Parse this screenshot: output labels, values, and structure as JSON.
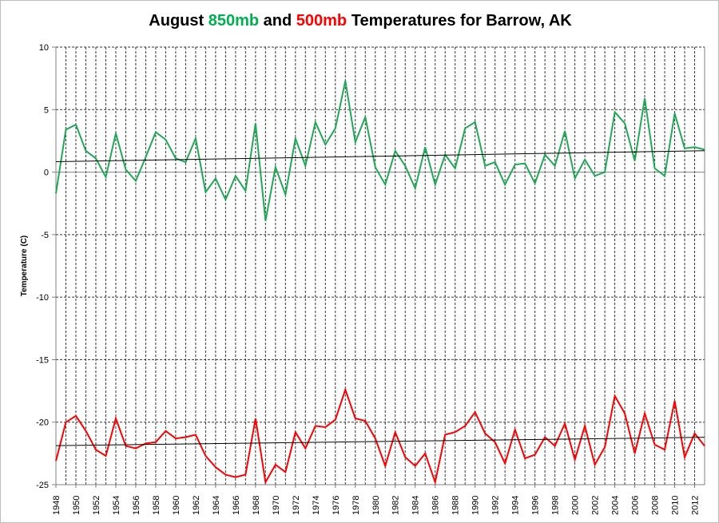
{
  "chart_data": {
    "type": "line",
    "title_parts": [
      {
        "text": "August ",
        "color": "#000000"
      },
      {
        "text": "850mb",
        "color": "#00b050"
      },
      {
        "text": " and ",
        "color": "#000000"
      },
      {
        "text": "500mb",
        "color": "#ff0000"
      },
      {
        "text": " Temperatures for Barrow, AK",
        "color": "#000000"
      }
    ],
    "xlabel": "",
    "ylabel": "Temperature (C)",
    "ylim": [
      -25,
      10
    ],
    "yticks": [
      10,
      5,
      0,
      -5,
      -10,
      -15,
      -20,
      -25
    ],
    "x": [
      1948,
      1949,
      1950,
      1951,
      1952,
      1953,
      1954,
      1955,
      1956,
      1957,
      1958,
      1959,
      1960,
      1961,
      1962,
      1963,
      1964,
      1965,
      1966,
      1967,
      1968,
      1969,
      1970,
      1971,
      1972,
      1973,
      1974,
      1975,
      1976,
      1977,
      1978,
      1979,
      1980,
      1981,
      1982,
      1983,
      1984,
      1985,
      1986,
      1987,
      1988,
      1989,
      1990,
      1991,
      1992,
      1993,
      1994,
      1995,
      1996,
      1997,
      1998,
      1999,
      2000,
      2001,
      2002,
      2003,
      2004,
      2005,
      2006,
      2007,
      2008,
      2009,
      2010,
      2011,
      2012,
      2013
    ],
    "xtick_labels": [
      "1948",
      "1950",
      "1952",
      "1954",
      "1956",
      "1958",
      "1960",
      "1962",
      "1964",
      "1966",
      "1968",
      "1970",
      "1972",
      "1974",
      "1976",
      "1978",
      "1980",
      "1982",
      "1984",
      "1986",
      "1988",
      "1990",
      "1992",
      "1994",
      "1996",
      "1998",
      "2000",
      "2002",
      "2004",
      "2006",
      "2008",
      "2010",
      "2012"
    ],
    "grid": true,
    "series": [
      {
        "name": "850mb",
        "color": "#1fa855",
        "trendline": true,
        "values": [
          -1.7,
          3.4,
          3.8,
          1.7,
          1.1,
          -0.4,
          3.1,
          0.2,
          -0.7,
          1.2,
          3.2,
          2.6,
          1.1,
          0.8,
          2.7,
          -1.6,
          -0.5,
          -2.2,
          -0.3,
          -1.5,
          3.9,
          -3.9,
          0.4,
          -1.8,
          2.7,
          0.5,
          4.0,
          2.2,
          3.5,
          7.3,
          2.4,
          4.4,
          0.4,
          -1.0,
          1.7,
          0.5,
          -1.3,
          2.0,
          -1.0,
          1.4,
          0.3,
          3.5,
          4.0,
          0.5,
          0.8,
          -1.0,
          0.6,
          0.7,
          -0.9,
          1.4,
          0.5,
          3.3,
          -0.5,
          1.0,
          -0.3,
          0.0,
          4.8,
          3.9,
          0.9,
          5.9,
          0.3,
          -0.3,
          4.7,
          1.9,
          2.0,
          1.8
        ]
      },
      {
        "name": "500mb",
        "color": "#ff0000",
        "trendline": true,
        "values": [
          -23.1,
          -20.0,
          -19.5,
          -20.7,
          -22.2,
          -22.7,
          -19.7,
          -21.9,
          -22.1,
          -21.7,
          -21.6,
          -20.7,
          -21.3,
          -21.2,
          -21.0,
          -22.7,
          -23.6,
          -24.2,
          -24.4,
          -24.2,
          -19.7,
          -24.8,
          -23.4,
          -24.0,
          -20.8,
          -22.1,
          -20.3,
          -20.4,
          -19.8,
          -17.4,
          -19.7,
          -19.9,
          -21.3,
          -23.5,
          -20.8,
          -22.8,
          -23.5,
          -22.5,
          -24.8,
          -21.0,
          -20.8,
          -20.3,
          -19.2,
          -20.9,
          -21.6,
          -23.3,
          -20.6,
          -22.9,
          -22.6,
          -21.2,
          -21.9,
          -20.1,
          -23.0,
          -20.3,
          -23.4,
          -22.0,
          -17.9,
          -19.3,
          -22.5,
          -19.3,
          -21.8,
          -22.2,
          -18.3,
          -22.8,
          -20.9,
          -21.9
        ]
      }
    ]
  }
}
